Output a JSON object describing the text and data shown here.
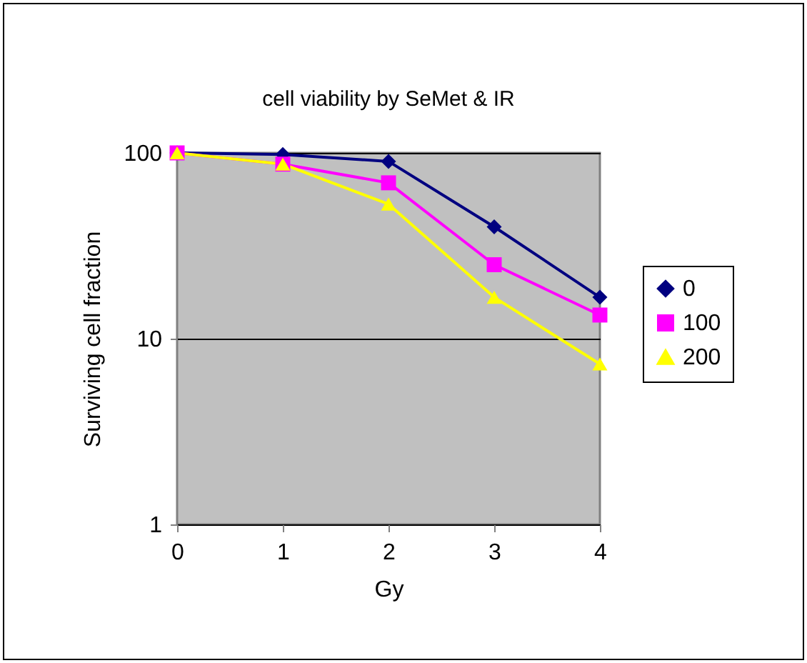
{
  "chart_data": {
    "type": "line",
    "title": "cell viability by SeMet & IR",
    "xlabel": "Gy",
    "ylabel": "Surviving cell fraction",
    "x": [
      0,
      1,
      2,
      3,
      4
    ],
    "series": [
      {
        "name": "0",
        "color": "#000080",
        "marker": "diamond",
        "values": [
          100,
          98,
          90,
          40,
          16.7
        ]
      },
      {
        "name": "100",
        "color": "#ff00ff",
        "marker": "square",
        "values": [
          100,
          87,
          69,
          25,
          13.4
        ]
      },
      {
        "name": "200",
        "color": "#ffff00",
        "marker": "triangle",
        "values": [
          100,
          87,
          53,
          16.7,
          7.3
        ]
      }
    ],
    "xlim": [
      0,
      4
    ],
    "xticks": [
      0,
      1,
      2,
      3,
      4
    ],
    "ylim": [
      1,
      100
    ],
    "yticks": [
      1,
      10,
      100
    ],
    "log": "y",
    "grid": "y",
    "legend": "right"
  }
}
